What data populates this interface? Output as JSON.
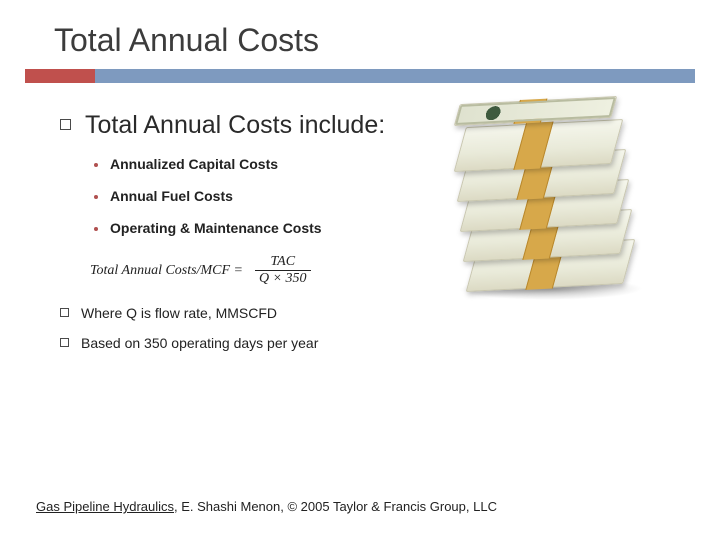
{
  "title": "Total Annual Costs",
  "accent": {
    "short_color": "#c0504d",
    "long_color": "#7e9abf"
  },
  "main_point": "Total Annual Costs include:",
  "sub_items": [
    "Annualized Capital Costs",
    "Annual Fuel Costs",
    "Operating & Maintenance Costs"
  ],
  "formula": {
    "lhs": "Total Annual Costs/MCF =",
    "numerator": "TAC",
    "denominator": "Q × 350"
  },
  "notes": [
    "Where Q is flow rate, MMSCFD",
    "Based on 350 operating days per year"
  ],
  "footer": {
    "book": "Gas Pipeline Hydraulics",
    "rest": ", E. Shashi Menon, © 2005 Taylor & Francis Group, LLC"
  },
  "colors": {
    "dot_bullet": "#b0504f",
    "text": "#222222",
    "title": "#3c3c3c"
  }
}
